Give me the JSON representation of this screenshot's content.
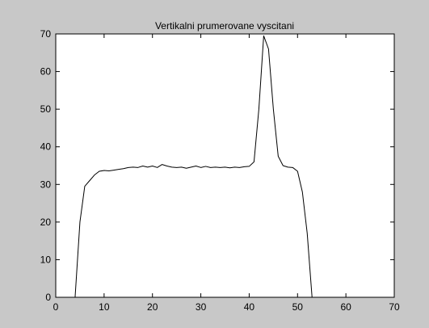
{
  "chart_data": {
    "type": "line",
    "title": "Vertikalni prumerovane vyscitani",
    "xlabel": "",
    "ylabel": "",
    "xlim": [
      0,
      70
    ],
    "ylim": [
      0,
      70
    ],
    "x_ticks": [
      "0",
      "10",
      "20",
      "30",
      "40",
      "50",
      "60",
      "70"
    ],
    "y_ticks": [
      "0",
      "10",
      "20",
      "30",
      "40",
      "50",
      "60",
      "70"
    ],
    "grid": false,
    "legend": "none",
    "series": [
      {
        "color": "#000000",
        "x": [
          4,
          5,
          6,
          7,
          8,
          9,
          10,
          11,
          12,
          13,
          14,
          15,
          16,
          17,
          18,
          19,
          20,
          21,
          22,
          23,
          24,
          25,
          26,
          27,
          28,
          29,
          30,
          31,
          32,
          33,
          34,
          35,
          36,
          37,
          38,
          39,
          40,
          41,
          42,
          43,
          44,
          45,
          46,
          47,
          48,
          49,
          50,
          51,
          52,
          53
        ],
        "y": [
          0,
          20,
          29.5,
          31,
          32.5,
          33.5,
          33.7,
          33.6,
          33.8,
          34,
          34.2,
          34.5,
          34.6,
          34.5,
          34.9,
          34.6,
          34.9,
          34.5,
          35.3,
          34.9,
          34.6,
          34.5,
          34.6,
          34.3,
          34.6,
          34.9,
          34.5,
          34.8,
          34.5,
          34.6,
          34.5,
          34.6,
          34.4,
          34.6,
          34.5,
          34.7,
          34.8,
          36,
          50,
          69.5,
          66,
          50,
          37.5,
          35,
          34.6,
          34.5,
          33.5,
          28,
          17,
          0
        ]
      }
    ]
  }
}
